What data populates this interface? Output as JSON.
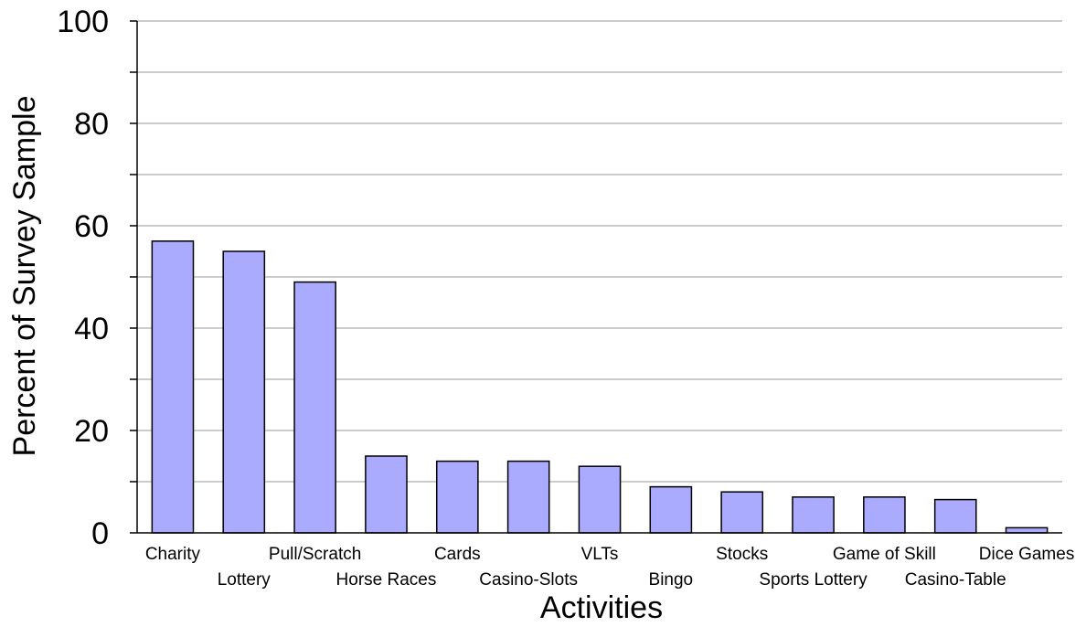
{
  "chart_data": {
    "type": "bar",
    "title": "",
    "xlabel": "Activities",
    "ylabel": "Percent of Survey Sample",
    "ylim": [
      0,
      100
    ],
    "yticks": [
      "0",
      "20",
      "40",
      "60",
      "80",
      "100"
    ],
    "grid": true,
    "categories": [
      "Charity",
      "Lottery",
      "Pull/Scratch",
      "Horse Races",
      "Cards",
      "Casino-Slots",
      "VLTs",
      "Bingo",
      "Stocks",
      "Sports Lottery",
      "Game of Skill",
      "Casino-Table",
      "Dice Games"
    ],
    "values": [
      57,
      55,
      49,
      15,
      14,
      14,
      13,
      9,
      8,
      7,
      7,
      6.5,
      1
    ],
    "colors": {
      "bar_fill": "#aaaaff",
      "bar_stroke": "#000000",
      "grid": "#999999"
    }
  }
}
